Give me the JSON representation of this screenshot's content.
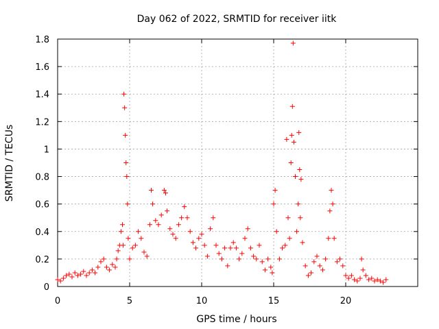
{
  "chart_data": {
    "type": "scatter",
    "title": "Day 062 of 2022, SRMTID for receiver iitk",
    "xlabel": "GPS time / hours",
    "ylabel": "SRMTID / TECUs",
    "xlim": [
      0,
      25
    ],
    "ylim": [
      0,
      1.8
    ],
    "x_ticks": [
      0,
      5,
      10,
      15,
      20
    ],
    "x_tick_labels": [
      "0",
      "5",
      "10",
      "15",
      "20"
    ],
    "y_ticks": [
      0,
      0.2,
      0.4,
      0.6,
      0.8,
      1,
      1.2,
      1.4,
      1.6,
      1.8
    ],
    "y_tick_labels": [
      "0",
      "0.2",
      "0.4",
      "0.6",
      "0.8",
      "1",
      "1.2",
      "1.4",
      "1.6",
      "1.8"
    ],
    "grid": true,
    "marker": "plus",
    "series": [
      {
        "name": "SRMTID",
        "color": "#ff0000",
        "x": [
          0.0,
          0.2,
          0.4,
          0.6,
          0.8,
          1.0,
          1.2,
          1.4,
          1.6,
          1.8,
          2.0,
          2.2,
          2.4,
          2.6,
          2.8,
          3.0,
          3.2,
          3.4,
          3.6,
          3.8,
          4.0,
          4.1,
          4.2,
          4.3,
          4.4,
          4.5,
          4.55,
          4.6,
          4.65,
          4.7,
          4.75,
          4.8,
          4.85,
          4.9,
          5.0,
          5.2,
          5.4,
          5.6,
          5.8,
          6.0,
          6.2,
          6.4,
          6.5,
          6.6,
          6.8,
          7.0,
          7.2,
          7.4,
          7.5,
          7.6,
          7.8,
          8.0,
          8.2,
          8.4,
          8.6,
          8.8,
          9.0,
          9.2,
          9.4,
          9.6,
          9.8,
          10.0,
          10.2,
          10.4,
          10.6,
          10.8,
          11.0,
          11.2,
          11.4,
          11.6,
          11.8,
          12.0,
          12.2,
          12.4,
          12.6,
          12.8,
          13.0,
          13.2,
          13.4,
          13.6,
          13.8,
          14.0,
          14.2,
          14.4,
          14.6,
          14.8,
          14.9,
          15.0,
          15.1,
          15.2,
          15.4,
          15.6,
          15.8,
          15.9,
          16.0,
          16.1,
          16.2,
          16.25,
          16.3,
          16.35,
          16.4,
          16.5,
          16.6,
          16.7,
          16.75,
          16.8,
          16.85,
          16.9,
          17.0,
          17.2,
          17.4,
          17.6,
          17.8,
          18.0,
          18.2,
          18.4,
          18.6,
          18.8,
          18.9,
          19.0,
          19.1,
          19.2,
          19.4,
          19.6,
          19.8,
          20.0,
          20.2,
          20.4,
          20.6,
          20.8,
          21.0,
          21.1,
          21.2,
          21.4,
          21.6,
          21.8,
          22.0,
          22.2,
          22.4,
          22.6,
          22.8
        ],
        "y": [
          0.05,
          0.04,
          0.06,
          0.08,
          0.09,
          0.07,
          0.1,
          0.08,
          0.09,
          0.11,
          0.08,
          0.1,
          0.12,
          0.1,
          0.14,
          0.18,
          0.2,
          0.14,
          0.12,
          0.16,
          0.14,
          0.2,
          0.26,
          0.3,
          0.4,
          0.45,
          0.3,
          1.4,
          1.3,
          1.1,
          0.9,
          0.8,
          0.6,
          0.35,
          0.2,
          0.28,
          0.3,
          0.4,
          0.35,
          0.25,
          0.22,
          0.45,
          0.7,
          0.6,
          0.48,
          0.45,
          0.52,
          0.7,
          0.68,
          0.55,
          0.42,
          0.38,
          0.35,
          0.45,
          0.5,
          0.58,
          0.5,
          0.4,
          0.32,
          0.28,
          0.35,
          0.38,
          0.3,
          0.22,
          0.42,
          0.5,
          0.3,
          0.24,
          0.2,
          0.28,
          0.15,
          0.28,
          0.32,
          0.28,
          0.2,
          0.24,
          0.35,
          0.42,
          0.28,
          0.22,
          0.2,
          0.3,
          0.18,
          0.12,
          0.2,
          0.14,
          0.1,
          0.6,
          0.7,
          0.4,
          0.2,
          0.28,
          0.3,
          1.07,
          0.5,
          0.35,
          0.9,
          1.1,
          1.31,
          1.77,
          1.05,
          0.8,
          0.4,
          0.6,
          1.12,
          0.85,
          0.5,
          0.78,
          0.32,
          0.15,
          0.08,
          0.1,
          0.18,
          0.22,
          0.15,
          0.12,
          0.2,
          0.35,
          0.55,
          0.7,
          0.6,
          0.35,
          0.18,
          0.2,
          0.15,
          0.08,
          0.06,
          0.08,
          0.05,
          0.04,
          0.06,
          0.2,
          0.12,
          0.08,
          0.05,
          0.06,
          0.04,
          0.05,
          0.04,
          0.03,
          0.05
        ]
      }
    ]
  }
}
